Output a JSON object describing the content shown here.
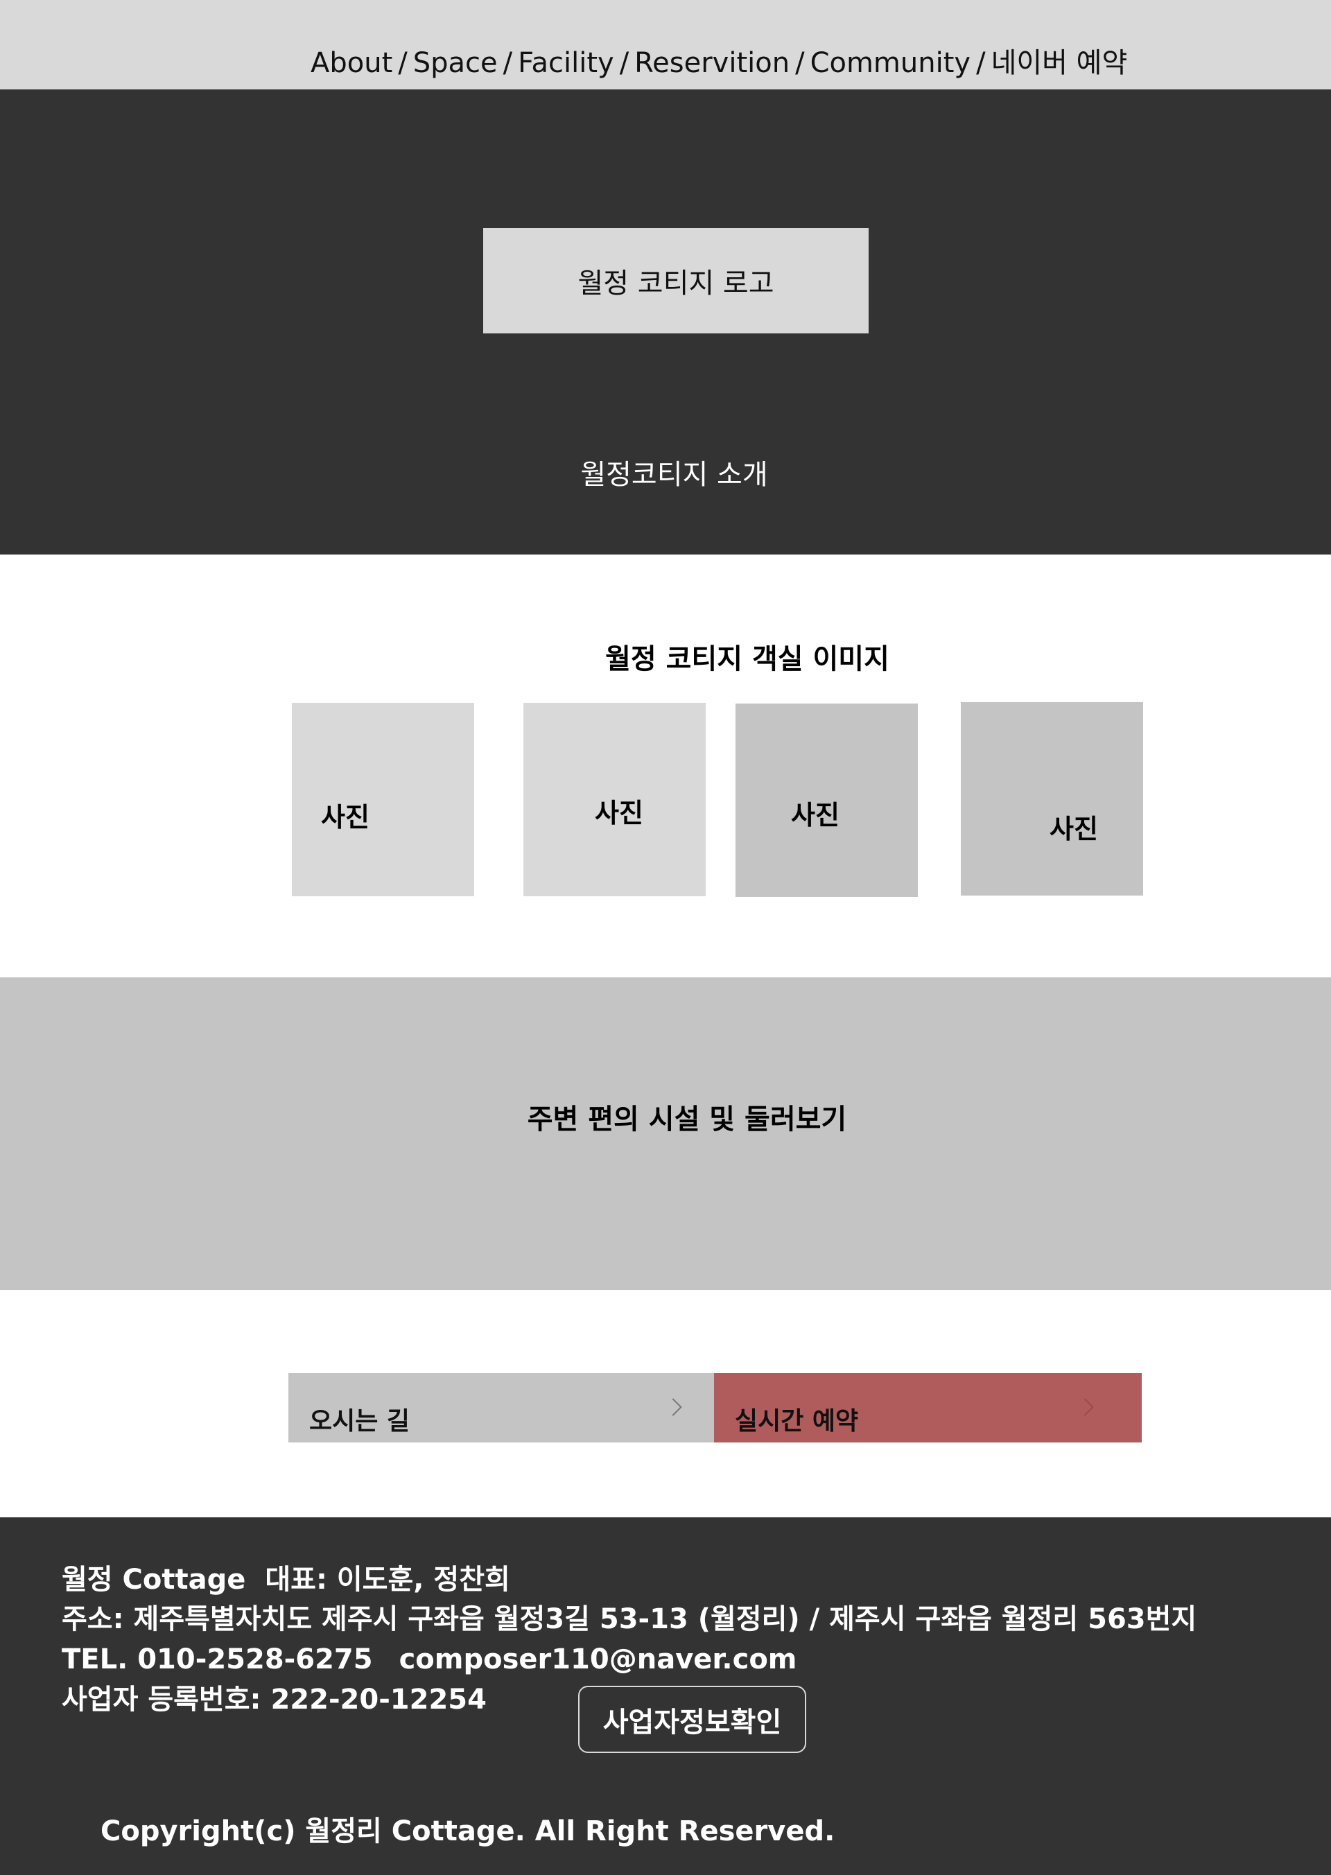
{
  "nav": {
    "items": [
      "About",
      "Space",
      "Facility",
      "Reservition",
      "Community",
      "네이버 예약"
    ],
    "separator": "/"
  },
  "hero": {
    "logo": "월정 코티지 로고",
    "intro": "월정코티지 소개"
  },
  "rooms": {
    "title": "월정 코티지 객실 이미지",
    "photos": [
      "사진",
      "사진",
      "사진",
      "사진"
    ]
  },
  "around": {
    "title": "주변 편의 시설 및 둘러보기"
  },
  "actions": {
    "directions": "오시는 길",
    "reservation": "실시간 예약"
  },
  "footer": {
    "name": "월정 Cottage",
    "representative": "대표: 이도훈, 정찬희",
    "address": "주소: 제주특별자치도 제주시 구좌읍 월정3길 53-13 (월정리) / 제주시 구좌읍 월정리 563번지",
    "tel": "TEL. 010-2528-6275",
    "email": "composer110@naver.com",
    "business_number": "사업자 등록번호: 222-20-12254",
    "business_info_button": "사업자정보확인",
    "copyright": "Copyright(c) 월정리 Cottage. All Right Reserved."
  },
  "colors": {
    "nav_bg": "#d9d9d9",
    "dark_bg": "#333333",
    "gray_box": "#c4c4c4",
    "light_box": "#d9d9d9",
    "reservation_accent": "#b05c5c"
  }
}
